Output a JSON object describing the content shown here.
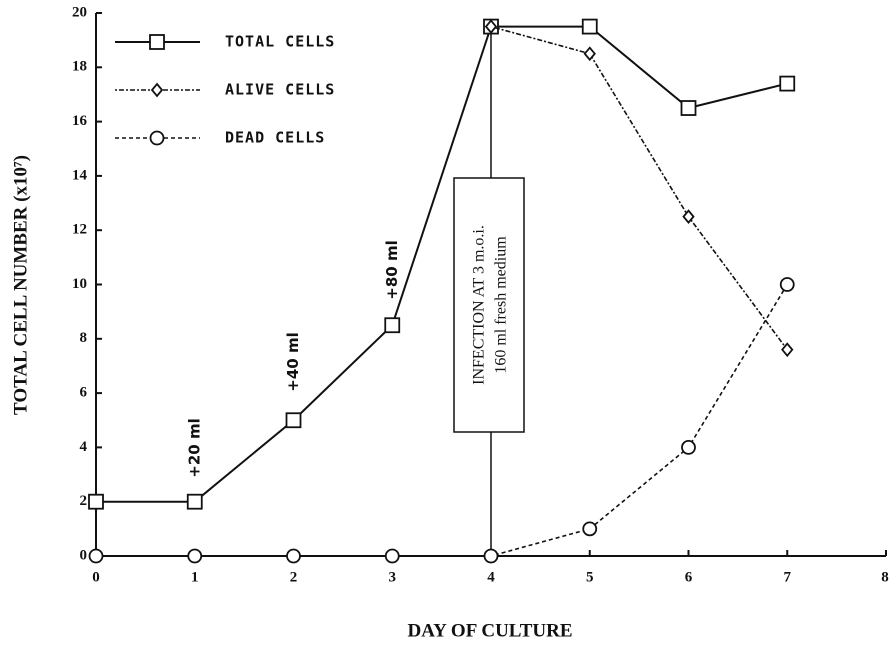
{
  "chart_data": {
    "type": "line",
    "x": [
      0,
      1,
      2,
      3,
      4,
      5,
      6,
      7
    ],
    "series": [
      {
        "name": "TOTAL CELLS",
        "color": "#111",
        "marker": "square",
        "dash": "solid",
        "values": [
          2,
          2,
          5,
          8.5,
          19.5,
          19.5,
          16.5,
          17.4
        ]
      },
      {
        "name": "ALIVE CELLS",
        "color": "#111",
        "marker": "diamond",
        "dash": "dashdot",
        "values": [
          null,
          null,
          null,
          null,
          19.5,
          18.5,
          12.5,
          7.6
        ]
      },
      {
        "name": "DEAD CELLS",
        "color": "#111",
        "marker": "circle",
        "dash": "dashed",
        "values": [
          0,
          0,
          0,
          0,
          0,
          1,
          4,
          10
        ]
      }
    ],
    "xlabel": "DAY OF CULTURE",
    "ylabel": "TOTAL CELL NUMBER (x10⁷)",
    "xlim": [
      0,
      8
    ],
    "xticks": [
      0,
      1,
      2,
      3,
      4,
      5,
      6,
      7,
      8
    ],
    "ylim": [
      0,
      20
    ],
    "yticks": [
      0,
      2,
      4,
      6,
      8,
      10,
      12,
      14,
      16,
      18,
      20
    ],
    "legend": "upper left",
    "annotations": [
      {
        "text": "+20 ml",
        "x": 1
      },
      {
        "text": "+40 ml",
        "x": 2
      },
      {
        "text": "+80 ml",
        "x": 3
      }
    ],
    "infection": {
      "x": 4,
      "lines": [
        "INFECTION AT 3 m.o.i.",
        "160 ml fresh medium"
      ]
    }
  }
}
